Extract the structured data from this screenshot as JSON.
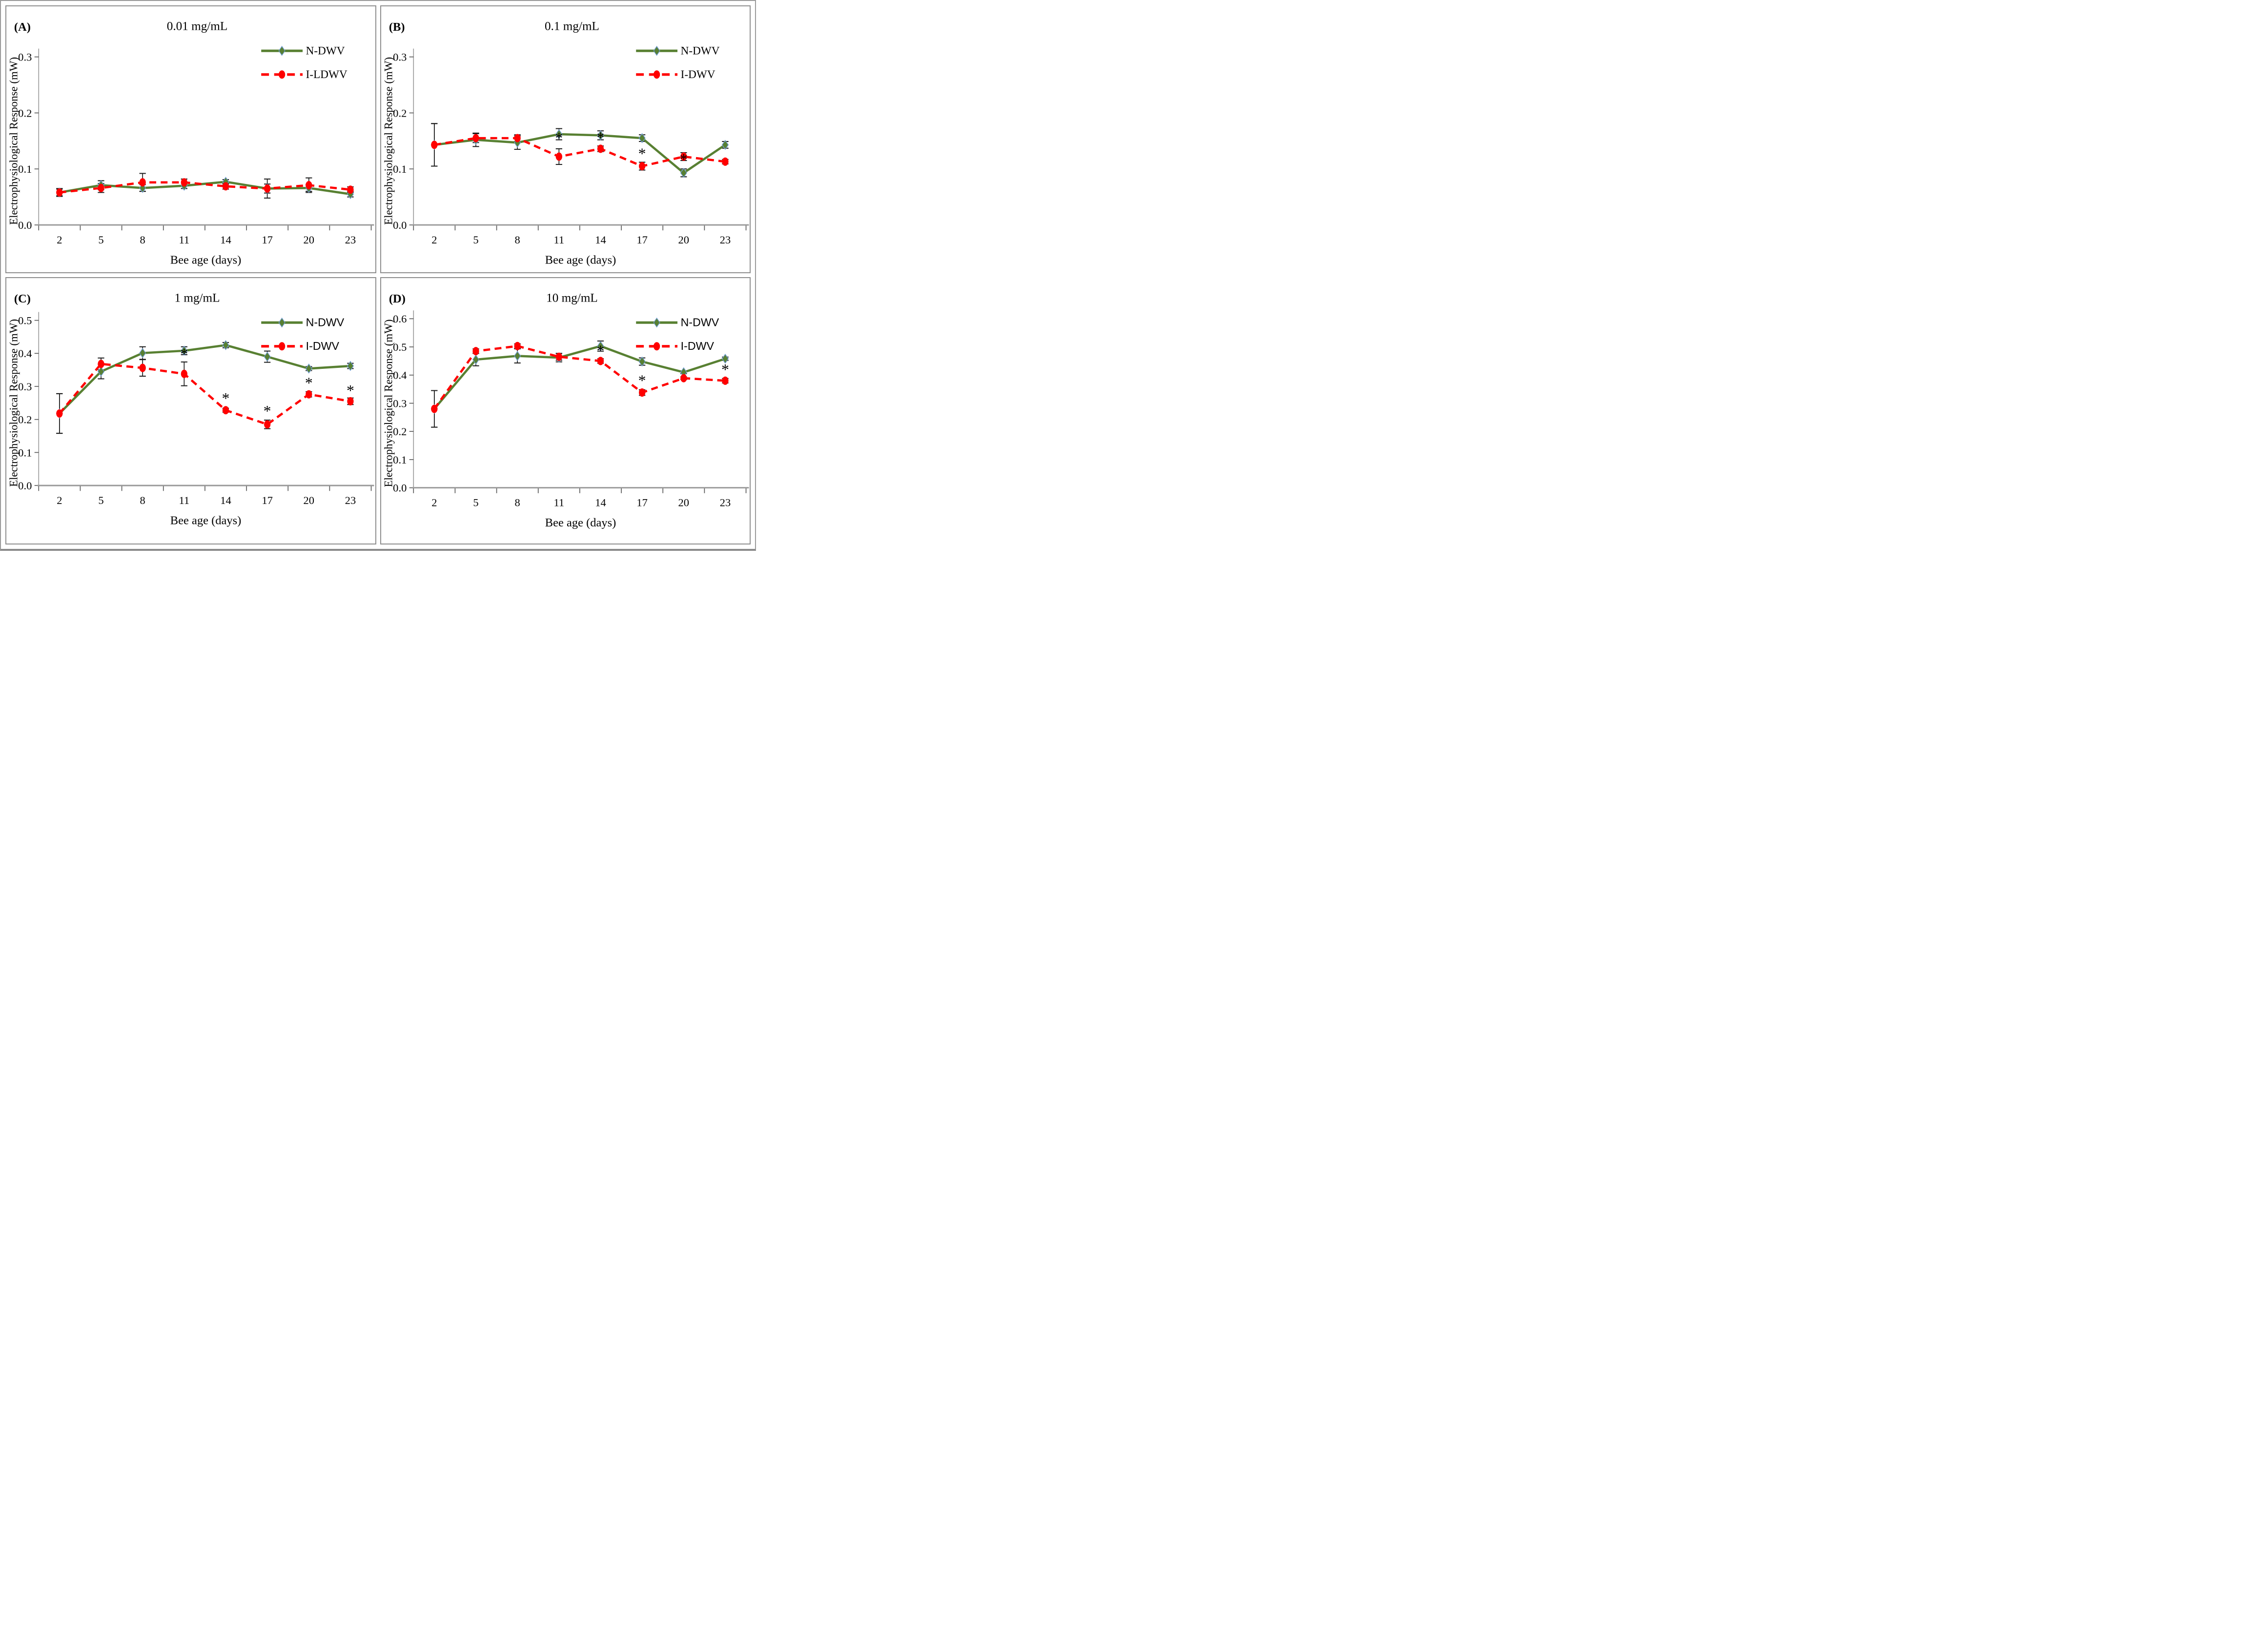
{
  "figure": {
    "xlabel": "Bee age (days)",
    "ylabel": "Electrophysiological Response (mW)",
    "colors": {
      "n_dwv_line": "#588032",
      "n_dwv_marker_stroke": "#6F9BD1",
      "i_dwv_line": "#FF0000",
      "error_bar": "#1a1a1a",
      "axis_line": "#9a9a9a",
      "tick_mark": "#595959",
      "text": "#000000",
      "panel_border": "#8f8f8f"
    }
  },
  "chart_data": [
    {
      "type": "line",
      "panel_label": "(A)",
      "title": "0.01 mg/mL",
      "xlabel": "Bee age (days)",
      "ylabel": "Electrophysiological Response (mW)",
      "categories": [
        2,
        5,
        8,
        11,
        14,
        17,
        20,
        23
      ],
      "ylim": [
        0.0,
        0.3
      ],
      "ytick_interval": 0.1,
      "ytick_labels": [
        "0.0",
        "0.1",
        "0.2",
        "0.3"
      ],
      "grid": false,
      "legend_position": "upper-right-inside",
      "legend_font": "serif",
      "series": [
        {
          "name": "N-DWV",
          "line_style": "solid",
          "line_color": "#588032",
          "marker": "diamond",
          "marker_fill": "#588032",
          "marker_stroke": "#6F9BD1",
          "values": [
            0.058,
            0.071,
            0.066,
            0.07,
            0.077,
            0.065,
            0.066,
            0.055
          ],
          "errors": [
            0.006,
            0.008,
            0.006,
            0.005,
            0.004,
            0.017,
            0.006,
            0.005
          ]
        },
        {
          "name": "I-LDWV",
          "line_style": "dashed",
          "line_color": "#FF0000",
          "marker": "oval",
          "marker_fill": "#FF0000",
          "values": [
            0.058,
            0.066,
            0.076,
            0.076,
            0.069,
            0.065,
            0.071,
            0.063
          ],
          "errors": [
            0.007,
            0.008,
            0.016,
            0.006,
            0.005,
            0.008,
            0.013,
            0.005
          ]
        }
      ],
      "significance_asterisks": []
    },
    {
      "type": "line",
      "panel_label": "(B)",
      "title": "0.1 mg/mL",
      "xlabel": "Bee age (days)",
      "ylabel": "Electrophysiological Response (mW)",
      "categories": [
        2,
        5,
        8,
        11,
        14,
        17,
        20,
        23
      ],
      "ylim": [
        0.0,
        0.3
      ],
      "ytick_interval": 0.1,
      "ytick_labels": [
        "0.0",
        "0.1",
        "0.2",
        "0.3"
      ],
      "grid": false,
      "legend_position": "upper-right-inside",
      "legend_font": "serif",
      "series": [
        {
          "name": "N-DWV",
          "line_style": "solid",
          "line_color": "#588032",
          "marker": "diamond",
          "marker_fill": "#588032",
          "marker_stroke": "#6F9BD1",
          "values": [
            0.143,
            0.152,
            0.147,
            0.162,
            0.16,
            0.155,
            0.093,
            0.143
          ],
          "errors": [
            0.038,
            0.012,
            0.012,
            0.01,
            0.008,
            0.006,
            0.007,
            0.006
          ]
        },
        {
          "name": "I-DWV",
          "line_style": "dashed",
          "line_color": "#FF0000",
          "marker": "oval",
          "marker_fill": "#FF0000",
          "values": [
            0.143,
            0.155,
            0.155,
            0.122,
            0.136,
            0.105,
            0.122,
            0.113
          ],
          "errors": [
            0.038,
            0.008,
            0.006,
            0.014,
            0.005,
            0.007,
            0.007,
            0.004
          ]
        }
      ],
      "significance_asterisks": [
        {
          "x": 11,
          "y": 0.146
        },
        {
          "x": 14,
          "y": 0.147
        },
        {
          "x": 17,
          "y": 0.118
        },
        {
          "x": 20,
          "y": 0.108
        }
      ]
    },
    {
      "type": "line",
      "panel_label": "(C)",
      "title": "1 mg/mL",
      "xlabel": "Bee age (days)",
      "ylabel": "Electrophysiological Response (mW)",
      "categories": [
        2,
        5,
        8,
        11,
        14,
        17,
        20,
        23
      ],
      "ylim": [
        0.0,
        0.5
      ],
      "ytick_interval": 0.1,
      "ytick_labels": [
        "0.0",
        "0.1",
        "0.2",
        "0.3",
        "0.4",
        "0.5"
      ],
      "grid": false,
      "legend_position": "upper-right-inside",
      "legend_font": "sans",
      "series": [
        {
          "name": "N-DWV",
          "line_style": "solid",
          "line_color": "#588032",
          "marker": "diamond",
          "marker_fill": "#588032",
          "marker_stroke": "#6F9BD1",
          "values": [
            0.218,
            0.345,
            0.401,
            0.408,
            0.425,
            0.39,
            0.354,
            0.362
          ],
          "errors": [
            0.06,
            0.022,
            0.019,
            0.012,
            0.008,
            0.017,
            0.006,
            0.008
          ]
        },
        {
          "name": "I-DWV",
          "line_style": "dashed",
          "line_color": "#FF0000",
          "marker": "oval",
          "marker_fill": "#FF0000",
          "values": [
            0.218,
            0.368,
            0.356,
            0.338,
            0.228,
            0.185,
            0.276,
            0.255
          ],
          "errors": [
            0.06,
            0.018,
            0.025,
            0.036,
            0.006,
            0.013,
            0.008,
            0.01
          ]
        }
      ],
      "significance_asterisks": [
        {
          "x": 11,
          "y": 0.383
        },
        {
          "x": 14,
          "y": 0.248
        },
        {
          "x": 17,
          "y": 0.21
        },
        {
          "x": 20,
          "y": 0.295
        },
        {
          "x": 23,
          "y": 0.272
        }
      ]
    },
    {
      "type": "line",
      "panel_label": "(D)",
      "title": "10 mg/mL",
      "xlabel": "Bee age (days)",
      "ylabel": "Electrophysiological Response (mW)",
      "categories": [
        2,
        5,
        8,
        11,
        14,
        17,
        20,
        23
      ],
      "ylim": [
        0.0,
        0.6
      ],
      "ytick_interval": 0.1,
      "ytick_labels": [
        "0.0",
        "0.1",
        "0.2",
        "0.3",
        "0.4",
        "0.5",
        "0.6"
      ],
      "grid": false,
      "legend_position": "upper-right-inside",
      "legend_font": "sans",
      "series": [
        {
          "name": "N-DWV",
          "line_style": "solid",
          "line_color": "#588032",
          "marker": "diamond",
          "marker_fill": "#588032",
          "marker_stroke": "#6F9BD1",
          "values": [
            0.28,
            0.455,
            0.468,
            0.462,
            0.503,
            0.448,
            0.41,
            0.458
          ],
          "errors": [
            0.065,
            0.022,
            0.025,
            0.015,
            0.018,
            0.013,
            0.005,
            0.006
          ]
        },
        {
          "name": "I-DWV",
          "line_style": "dashed",
          "line_color": "#FF0000",
          "marker": "oval",
          "marker_fill": "#FF0000",
          "values": [
            0.28,
            0.485,
            0.503,
            0.465,
            0.45,
            0.338,
            0.389,
            0.38
          ],
          "errors": [
            0.065,
            0.008,
            0.008,
            0.012,
            0.008,
            0.01,
            0.005,
            0.008
          ]
        }
      ],
      "significance_asterisks": [
        {
          "x": 14,
          "y": 0.468
        },
        {
          "x": 17,
          "y": 0.362
        },
        {
          "x": 23,
          "y": 0.401
        }
      ]
    }
  ]
}
